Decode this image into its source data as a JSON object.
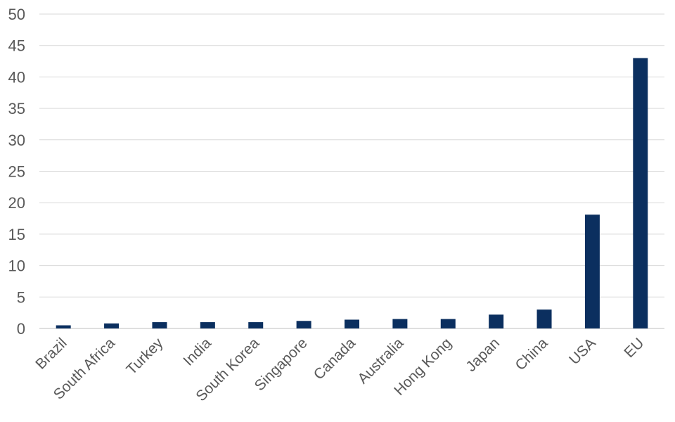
{
  "chart_data": {
    "type": "bar",
    "categories": [
      "Brazil",
      "South Africa",
      "Turkey",
      "India",
      "South Korea",
      "Singapore",
      "Canada",
      "Australia",
      "Hong Kong",
      "Japan",
      "China",
      "USA",
      "EU"
    ],
    "values": [
      0.5,
      0.8,
      1.0,
      1.0,
      1.0,
      1.2,
      1.4,
      1.5,
      1.5,
      2.2,
      3.0,
      18.1,
      43.0
    ],
    "ylim": [
      0,
      50
    ],
    "yticks": [
      0,
      5,
      10,
      15,
      20,
      25,
      30,
      35,
      40,
      45,
      50
    ],
    "grid": true,
    "bar_color": "#0b2f5f"
  }
}
